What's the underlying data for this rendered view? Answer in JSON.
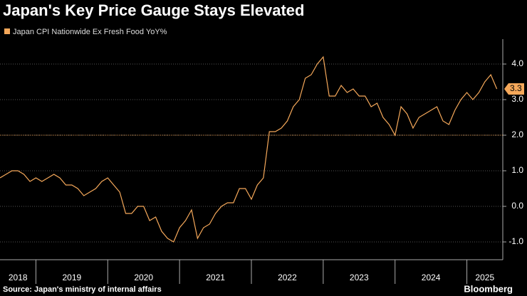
{
  "chart_data": {
    "type": "line",
    "title": "Japan's Key Price Gauge Stays Elevated",
    "source": "Source: Japan's ministry of internal affairs",
    "brand": "Bloomberg",
    "x": [
      2018.5,
      2018.583,
      2018.667,
      2018.75,
      2018.833,
      2018.917,
      2019,
      2019.083,
      2019.167,
      2019.25,
      2019.333,
      2019.417,
      2019.5,
      2019.583,
      2019.667,
      2019.75,
      2019.833,
      2019.917,
      2020,
      2020.083,
      2020.167,
      2020.25,
      2020.333,
      2020.417,
      2020.5,
      2020.583,
      2020.667,
      2020.75,
      2020.833,
      2020.917,
      2021,
      2021.083,
      2021.167,
      2021.25,
      2021.333,
      2021.417,
      2021.5,
      2021.583,
      2021.667,
      2021.75,
      2021.833,
      2021.917,
      2022,
      2022.083,
      2022.167,
      2022.25,
      2022.333,
      2022.417,
      2022.5,
      2022.583,
      2022.667,
      2022.75,
      2022.833,
      2022.917,
      2023,
      2023.083,
      2023.167,
      2023.25,
      2023.333,
      2023.417,
      2023.5,
      2023.583,
      2023.667,
      2023.75,
      2023.833,
      2023.917,
      2024,
      2024.083,
      2024.167,
      2024.25,
      2024.333,
      2024.417,
      2024.5,
      2024.583,
      2024.667,
      2024.75,
      2024.833,
      2024.917,
      2025,
      2025.083,
      2025.167,
      2025.25,
      2025.333,
      2025.417
    ],
    "series": [
      {
        "name": "Japan CPI Nationwide Ex Fresh Food YoY%",
        "color": "#f5a85a",
        "values": [
          0.8,
          0.9,
          1.0,
          1.0,
          0.9,
          0.7,
          0.8,
          0.7,
          0.8,
          0.9,
          0.8,
          0.6,
          0.6,
          0.5,
          0.3,
          0.4,
          0.5,
          0.7,
          0.8,
          0.6,
          0.4,
          -0.2,
          -0.2,
          0.0,
          0.0,
          -0.4,
          -0.3,
          -0.7,
          -0.9,
          -1.0,
          -0.6,
          -0.4,
          -0.1,
          -0.9,
          -0.6,
          -0.5,
          -0.2,
          0.0,
          0.1,
          0.1,
          0.5,
          0.5,
          0.2,
          0.6,
          0.8,
          2.1,
          2.1,
          2.2,
          2.4,
          2.8,
          3.0,
          3.6,
          3.7,
          4.0,
          4.2,
          3.1,
          3.1,
          3.4,
          3.2,
          3.3,
          3.1,
          3.1,
          2.8,
          2.9,
          2.5,
          2.3,
          2.0,
          2.8,
          2.6,
          2.2,
          2.5,
          2.6,
          2.7,
          2.8,
          2.4,
          2.3,
          2.7,
          3.0,
          3.2,
          3.0,
          3.2,
          3.5,
          3.7,
          3.3
        ]
      }
    ],
    "xlim": [
      2018.5,
      2025.5
    ],
    "xticks": [
      {
        "value": 2018.75,
        "label": "2018"
      },
      {
        "value": 2019.5,
        "label": "2019"
      },
      {
        "value": 2020.5,
        "label": "2020"
      },
      {
        "value": 2021.5,
        "label": "2021"
      },
      {
        "value": 2022.5,
        "label": "2022"
      },
      {
        "value": 2023.5,
        "label": "2023"
      },
      {
        "value": 2024.5,
        "label": "2024"
      },
      {
        "value": 2025.25,
        "label": "2025"
      }
    ],
    "ylim": [
      -1.5,
      4.7
    ],
    "yticks": [
      {
        "value": -1,
        "label": "-1.0"
      },
      {
        "value": 0,
        "label": "0.0"
      },
      {
        "value": 1,
        "label": "1.0"
      },
      {
        "value": 2,
        "label": "2.0"
      },
      {
        "value": 3,
        "label": "3.0"
      },
      {
        "value": 4,
        "label": "4.0"
      }
    ],
    "reference_line": 2,
    "grid": true
  }
}
